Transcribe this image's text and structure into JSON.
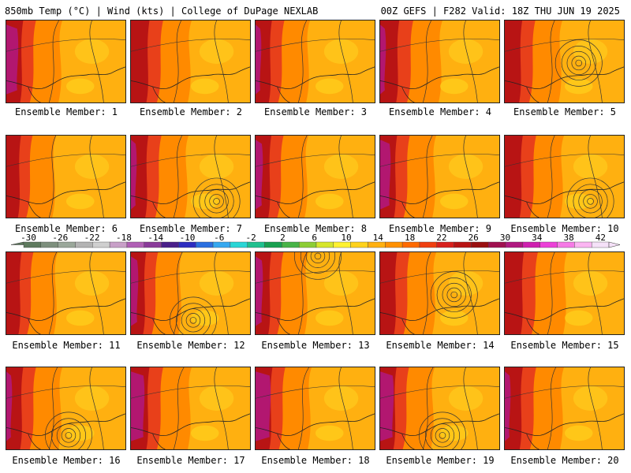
{
  "header": {
    "left": "850mb Temp (°C) | Wind (kts) | College of DuPage NEXLAB",
    "right": "00Z GEFS | F282 Valid: 18Z THU JUN 19 2025"
  },
  "colorbar": {
    "labels": [
      "-30",
      "-26",
      "-22",
      "-18",
      "-14",
      "-10",
      "-6",
      "-2",
      "2",
      "6",
      "10",
      "14",
      "18",
      "22",
      "26",
      "30",
      "34",
      "38",
      "42"
    ],
    "colors": [
      "#5e7a5e",
      "#7d8f7d",
      "#9aa79a",
      "#b3b3b3",
      "#cfcfcf",
      "#c8a0c8",
      "#b05fb5",
      "#8a3a9a",
      "#4a1f8a",
      "#2c2cc0",
      "#2a6fe0",
      "#35a8f0",
      "#29d6d6",
      "#1fc08e",
      "#18a050",
      "#47b347",
      "#8ccd35",
      "#d6e62c",
      "#fff230",
      "#ffd21c",
      "#ffb010",
      "#ff9000",
      "#ff6a00",
      "#f04010",
      "#d8201c",
      "#b81414",
      "#9a1010",
      "#a01050",
      "#b01880",
      "#cf20b0",
      "#ec40d8",
      "#f67ae6",
      "#fbb5f2",
      "#f5e1f8"
    ]
  },
  "members": [
    {
      "caption": "Ensemble Member: 1",
      "warm": 0.55,
      "cold": 0.75,
      "low": null
    },
    {
      "caption": "Ensemble Member: 2",
      "warm": 0.7,
      "cold": 0.45,
      "low": null
    },
    {
      "caption": "Ensemble Member: 3",
      "warm": 0.5,
      "cold": 0.55,
      "low": null
    },
    {
      "caption": "Ensemble Member: 4",
      "warm": 0.75,
      "cold": 0.55,
      "low": null
    },
    {
      "caption": "Ensemble Member: 5",
      "warm": 0.6,
      "cold": 0.4,
      "low": "center"
    },
    {
      "caption": "Ensemble Member: 6",
      "warm": 0.35,
      "cold": 0.35,
      "low": null
    },
    {
      "caption": "Ensemble Member: 7",
      "warm": 0.6,
      "cold": 0.55,
      "low": "south"
    },
    {
      "caption": "Ensemble Member: 8",
      "warm": 0.45,
      "cold": 0.6,
      "low": null
    },
    {
      "caption": "Ensemble Member: 9",
      "warm": 0.55,
      "cold": 0.7,
      "low": null
    },
    {
      "caption": "Ensemble Member: 10",
      "warm": 0.65,
      "cold": 0.4,
      "low": "south"
    },
    {
      "caption": "Ensemble Member: 11",
      "warm": 0.4,
      "cold": 0.45,
      "low": null
    },
    {
      "caption": "Ensemble Member: 12",
      "warm": 0.4,
      "cold": 0.6,
      "low": "gulf"
    },
    {
      "caption": "Ensemble Member: 13",
      "warm": 0.45,
      "cold": 0.6,
      "low": "north"
    },
    {
      "caption": "Ensemble Member: 14",
      "warm": 0.55,
      "cold": 0.5,
      "low": "center"
    },
    {
      "caption": "Ensemble Member: 15",
      "warm": 0.75,
      "cold": 0.4,
      "low": null
    },
    {
      "caption": "Ensemble Member: 16",
      "warm": 0.55,
      "cold": 0.55,
      "low": "gulf"
    },
    {
      "caption": "Ensemble Member: 17",
      "warm": 0.7,
      "cold": 0.8,
      "low": null
    },
    {
      "caption": "Ensemble Member: 18",
      "warm": 0.55,
      "cold": 0.85,
      "low": null
    },
    {
      "caption": "Ensemble Member: 19",
      "warm": 0.5,
      "cold": 0.8,
      "low": "gulf"
    },
    {
      "caption": "Ensemble Member: 20",
      "warm": 0.65,
      "cold": 0.55,
      "low": null
    }
  ]
}
